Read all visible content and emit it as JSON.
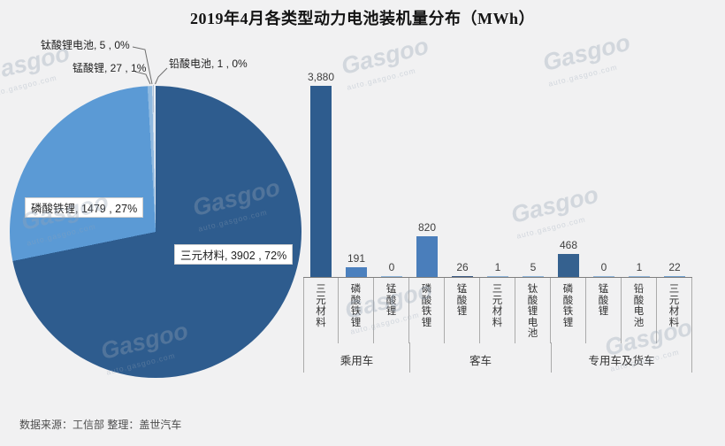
{
  "title": "2019年4月各类型动力电池装机量分布（MWh）",
  "footer": "数据来源：工信部  整理：盖世汽车",
  "watermark": {
    "text": "Gasgoo",
    "subtext": "auto.gasgoo.com"
  },
  "colors": {
    "background": "#f1f1f2",
    "axis": "#7f7f7f",
    "cell_border": "#ababab",
    "pie_dark_blue": "#2E5C8E",
    "pie_light_blue": "#5B9AD5",
    "label_text": "#3f3f3f"
  },
  "chart_data": [
    {
      "type": "pie",
      "title": "2019年4月各类型动力电池装机量分布（MWh）",
      "unit": "MWh",
      "legend_position": "callouts",
      "slices": [
        {
          "label": "三元材料",
          "value": 3902,
          "percent": "72%",
          "color": "#2E5C8E",
          "callout": "三元材料, 3902 , 72%"
        },
        {
          "label": "磷酸铁锂",
          "value": 1479,
          "percent": "27%",
          "color": "#5B9AD5",
          "callout": "磷酸铁锂, 1479 , 27%"
        },
        {
          "label": "锰酸锂",
          "value": 27,
          "percent": "1%",
          "color": "#8FB9E0",
          "callout": "锰酸锂, 27 , 1%"
        },
        {
          "label": "钛酸锂电池",
          "value": 5,
          "percent": "0%",
          "color": "#CEDCEB",
          "callout": "钛酸锂电池, 5 , 0%"
        },
        {
          "label": "铅酸电池",
          "value": 1,
          "percent": "0%",
          "color": "#E9EEF4",
          "callout": "铅酸电池, 1 , 0%"
        }
      ]
    },
    {
      "type": "bar",
      "ylim": [
        0,
        3880
      ],
      "grid": false,
      "value_labels": true,
      "groups": [
        {
          "name": "乘用车",
          "bars": [
            {
              "category": "三元材料",
              "value": 3880,
              "display": "3,880",
              "color": "#2E5C8E"
            },
            {
              "category": "磷酸铁锂",
              "value": 191,
              "display": "191",
              "color": "#4B80BE"
            },
            {
              "category": "锰酸锂",
              "value": 0,
              "display": "0",
              "color": "#8EB4D9"
            }
          ]
        },
        {
          "name": "客车",
          "bars": [
            {
              "category": "磷酸铁锂",
              "value": 820,
              "display": "820",
              "color": "#4A7EBB"
            },
            {
              "category": "锰酸锂",
              "value": 26,
              "display": "26",
              "color": "#3A5A85"
            },
            {
              "category": "三元材料",
              "value": 1,
              "display": "1",
              "color": "#8EB4D9"
            },
            {
              "category": "钛酸锂电池",
              "value": 5,
              "display": "5",
              "color": "#8EB4D9"
            }
          ]
        },
        {
          "name": "专用车及货车",
          "bars": [
            {
              "category": "磷酸铁锂",
              "value": 468,
              "display": "468",
              "color": "#35618F"
            },
            {
              "category": "锰酸锂",
              "value": 0,
              "display": "0",
              "color": "#8EB4D9"
            },
            {
              "category": "铅酸电池",
              "value": 1,
              "display": "1",
              "color": "#8EB4D9"
            },
            {
              "category": "三元材料",
              "value": 22,
              "display": "22",
              "color": "#6FA0CF"
            }
          ]
        }
      ]
    }
  ]
}
